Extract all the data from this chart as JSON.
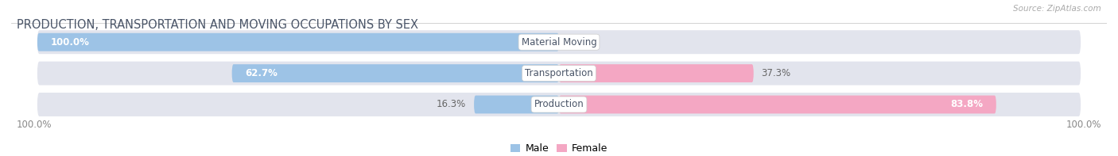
{
  "title": "PRODUCTION, TRANSPORTATION AND MOVING OCCUPATIONS BY SEX",
  "source": "Source: ZipAtlas.com",
  "categories": [
    "Material Moving",
    "Transportation",
    "Production"
  ],
  "male_pct": [
    100.0,
    62.7,
    16.3
  ],
  "female_pct": [
    0.0,
    37.3,
    83.8
  ],
  "male_color": "#9dc3e6",
  "female_color": "#f4a7c3",
  "bg_color": "#ffffff",
  "bar_bg_color": "#e2e4ed",
  "title_color": "#4a5568",
  "label_color": "#4a5568",
  "pct_color_inside": "#ffffff",
  "pct_color_outside": "#666666",
  "title_fontsize": 10.5,
  "label_fontsize": 8.5,
  "bar_label_fontsize": 8.5,
  "axis_label_left": "100.0%",
  "axis_label_right": "100.0%"
}
